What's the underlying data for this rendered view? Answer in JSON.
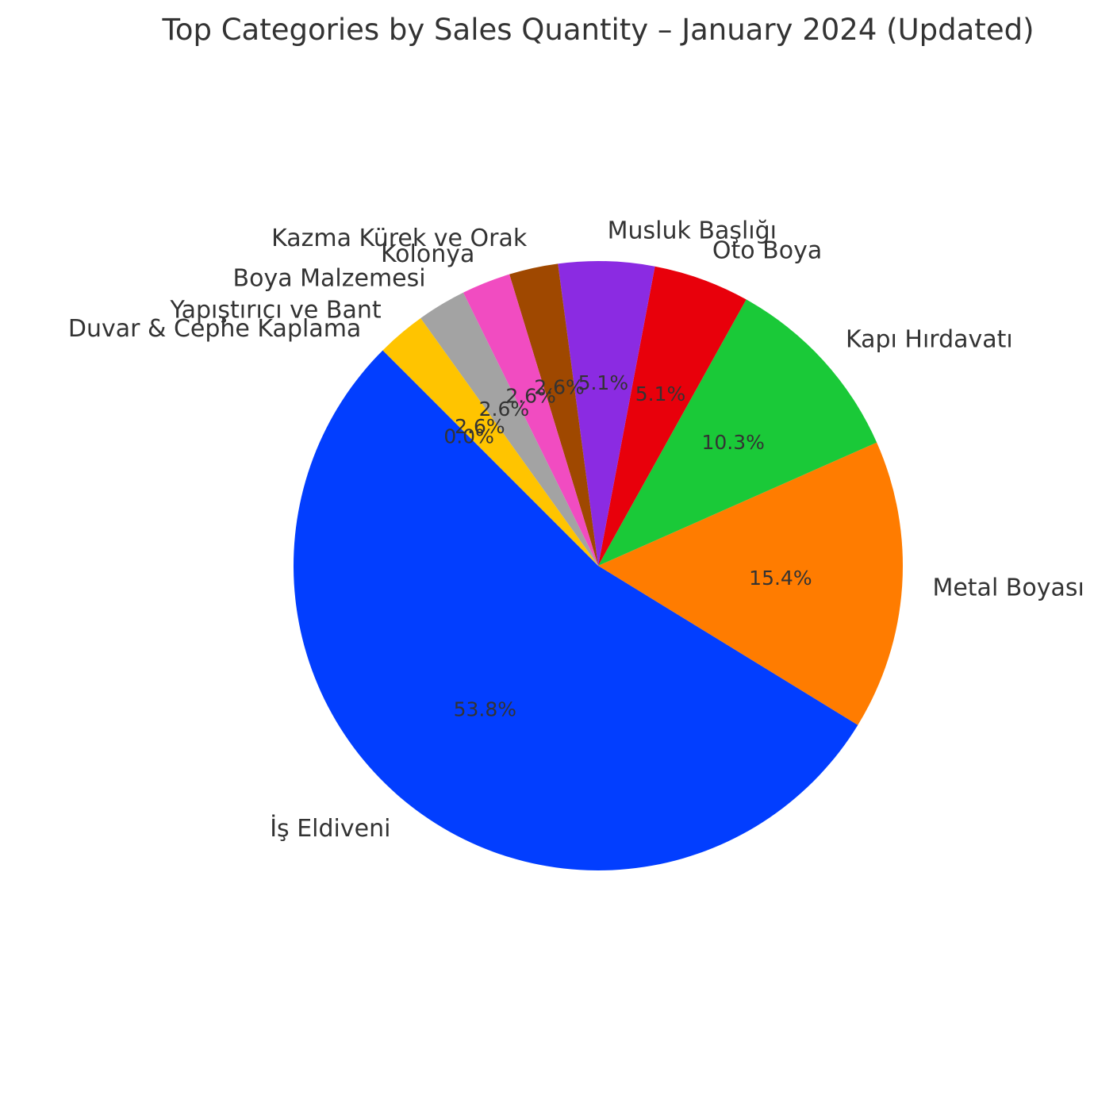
{
  "chart_data": {
    "type": "pie",
    "title": "Top Categories by Sales Quantity – January 2024 (Updated)",
    "start_angle_deg": 135,
    "direction": "counterclockwise",
    "slices": [
      {
        "label": "Duvar & Cephe Kaplama",
        "value": 0.0,
        "pct_label": "0.0%",
        "color": "#023eff"
      },
      {
        "label": "İş Eldiveni",
        "value": 53.8,
        "pct_label": "53.8%",
        "color": "#023eff"
      },
      {
        "label": "Metal Boyası",
        "value": 15.4,
        "pct_label": "15.4%",
        "color": "#ff7c00"
      },
      {
        "label": "Kapı Hırdavatı",
        "value": 10.3,
        "pct_label": "10.3%",
        "color": "#1ac938"
      },
      {
        "label": "Oto Boya",
        "value": 5.1,
        "pct_label": "5.1%",
        "color": "#e8000b"
      },
      {
        "label": "Musluk Başlığı",
        "value": 5.1,
        "pct_label": "5.1%",
        "color": "#8b2be2"
      },
      {
        "label": "Kazma Kürek ve Orak",
        "value": 2.6,
        "pct_label": "2.6%",
        "color": "#9f4800"
      },
      {
        "label": "Kolonya",
        "value": 2.6,
        "pct_label": "2.6%",
        "color": "#f14cc1"
      },
      {
        "label": "Boya Malzemesi",
        "value": 2.6,
        "pct_label": "2.6%",
        "color": "#a3a3a3"
      },
      {
        "label": "Yapıştırıcı ve Bant",
        "value": 2.6,
        "pct_label": "2.6%",
        "color": "#ffc400"
      }
    ]
  }
}
